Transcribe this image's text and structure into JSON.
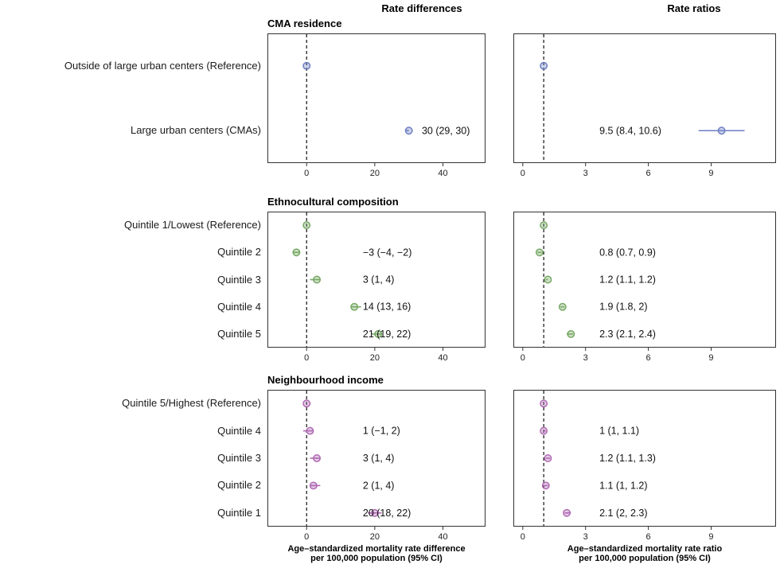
{
  "figure": {
    "background": "#ffffff"
  },
  "chart_data": {
    "type": "scatter",
    "subtype": "forest-plot",
    "columns": [
      {
        "key": "diff",
        "header": "Rate differences",
        "xlabel": "Age–standardized mortality rate difference\nper 100,000 population (95% CI)",
        "ticks": [
          0,
          20,
          40
        ],
        "xlim": [
          -11.5,
          52.5
        ],
        "refline": 0
      },
      {
        "key": "ratio",
        "header": "Rate ratios",
        "xlabel": "Age–standardized mortality rate ratio\nper 100,000 population (95% CI)",
        "ticks": [
          0,
          3,
          6,
          9
        ],
        "xlim": [
          -0.45,
          12.1
        ],
        "refline": 1
      }
    ],
    "panels": [
      {
        "title": "CMA residence",
        "color": "#6e7fc3",
        "ann_x": {
          "diff": 33.8,
          "ratio": 3.66
        },
        "rows": [
          {
            "label": "Outside of large urban centers (Reference)",
            "diff": {
              "est": 0,
              "lo": 0,
              "hi": 0,
              "text": ""
            },
            "ratio": {
              "est": 1,
              "lo": 1,
              "hi": 1,
              "text": ""
            }
          },
          {
            "label": "Large urban centers (CMAs)",
            "diff": {
              "est": 30,
              "lo": 29,
              "hi": 30,
              "text": "30 (29, 30)"
            },
            "ratio": {
              "est": 9.5,
              "lo": 8.4,
              "hi": 10.6,
              "text": "9.5 (8.4, 10.6)"
            }
          }
        ]
      },
      {
        "title": "Ethnocultural composition",
        "color": "#77a865",
        "ann_x": {
          "diff": 16.5,
          "ratio": 3.66
        },
        "rows": [
          {
            "label": "Quintile 1/Lowest (Reference)",
            "diff": {
              "est": 0,
              "lo": 0,
              "hi": 0,
              "text": ""
            },
            "ratio": {
              "est": 1,
              "lo": 1,
              "hi": 1,
              "text": ""
            }
          },
          {
            "label": "Quintile 2",
            "diff": {
              "est": -3,
              "lo": -4,
              "hi": -2,
              "text": "−3 (−4, −2)"
            },
            "ratio": {
              "est": 0.8,
              "lo": 0.7,
              "hi": 0.9,
              "text": "0.8 (0.7, 0.9)"
            }
          },
          {
            "label": "Quintile 3",
            "diff": {
              "est": 3,
              "lo": 1,
              "hi": 4,
              "text": "3 (1, 4)"
            },
            "ratio": {
              "est": 1.2,
              "lo": 1.1,
              "hi": 1.2,
              "text": "1.2 (1.1, 1.2)"
            }
          },
          {
            "label": "Quintile 4",
            "diff": {
              "est": 14,
              "lo": 13,
              "hi": 16,
              "text": "14 (13, 16)"
            },
            "ratio": {
              "est": 1.9,
              "lo": 1.8,
              "hi": 2,
              "text": "1.9 (1.8, 2)"
            }
          },
          {
            "label": "Quintile 5",
            "diff": {
              "est": 21,
              "lo": 19,
              "hi": 22,
              "text": "21 (19, 22)"
            },
            "ratio": {
              "est": 2.3,
              "lo": 2.1,
              "hi": 2.4,
              "text": "2.3 (2.1, 2.4)"
            }
          }
        ]
      },
      {
        "title": "Neighbourhood income",
        "color": "#b06ab3",
        "ann_x": {
          "diff": 16.5,
          "ratio": 3.66
        },
        "rows": [
          {
            "label": "Quintile 5/Highest (Reference)",
            "diff": {
              "est": 0,
              "lo": 0,
              "hi": 0,
              "text": ""
            },
            "ratio": {
              "est": 1,
              "lo": 1,
              "hi": 1,
              "text": ""
            }
          },
          {
            "label": "Quintile 4",
            "diff": {
              "est": 1,
              "lo": -1,
              "hi": 2,
              "text": "1 (−1, 2)"
            },
            "ratio": {
              "est": 1,
              "lo": 1,
              "hi": 1.1,
              "text": "1 (1, 1.1)"
            }
          },
          {
            "label": "Quintile 3",
            "diff": {
              "est": 3,
              "lo": 1,
              "hi": 4,
              "text": "3 (1, 4)"
            },
            "ratio": {
              "est": 1.2,
              "lo": 1.1,
              "hi": 1.3,
              "text": "1.2 (1.1, 1.3)"
            }
          },
          {
            "label": "Quintile 2",
            "diff": {
              "est": 2,
              "lo": 1,
              "hi": 4,
              "text": "2 (1, 4)"
            },
            "ratio": {
              "est": 1.1,
              "lo": 1,
              "hi": 1.2,
              "text": "1.1 (1, 1.2)"
            }
          },
          {
            "label": "Quintile 1",
            "diff": {
              "est": 20,
              "lo": 18,
              "hi": 22,
              "text": "20 (18, 22)"
            },
            "ratio": {
              "est": 2.1,
              "lo": 2,
              "hi": 2.3,
              "text": "2.1 (2, 2.3)"
            }
          }
        ]
      }
    ]
  }
}
